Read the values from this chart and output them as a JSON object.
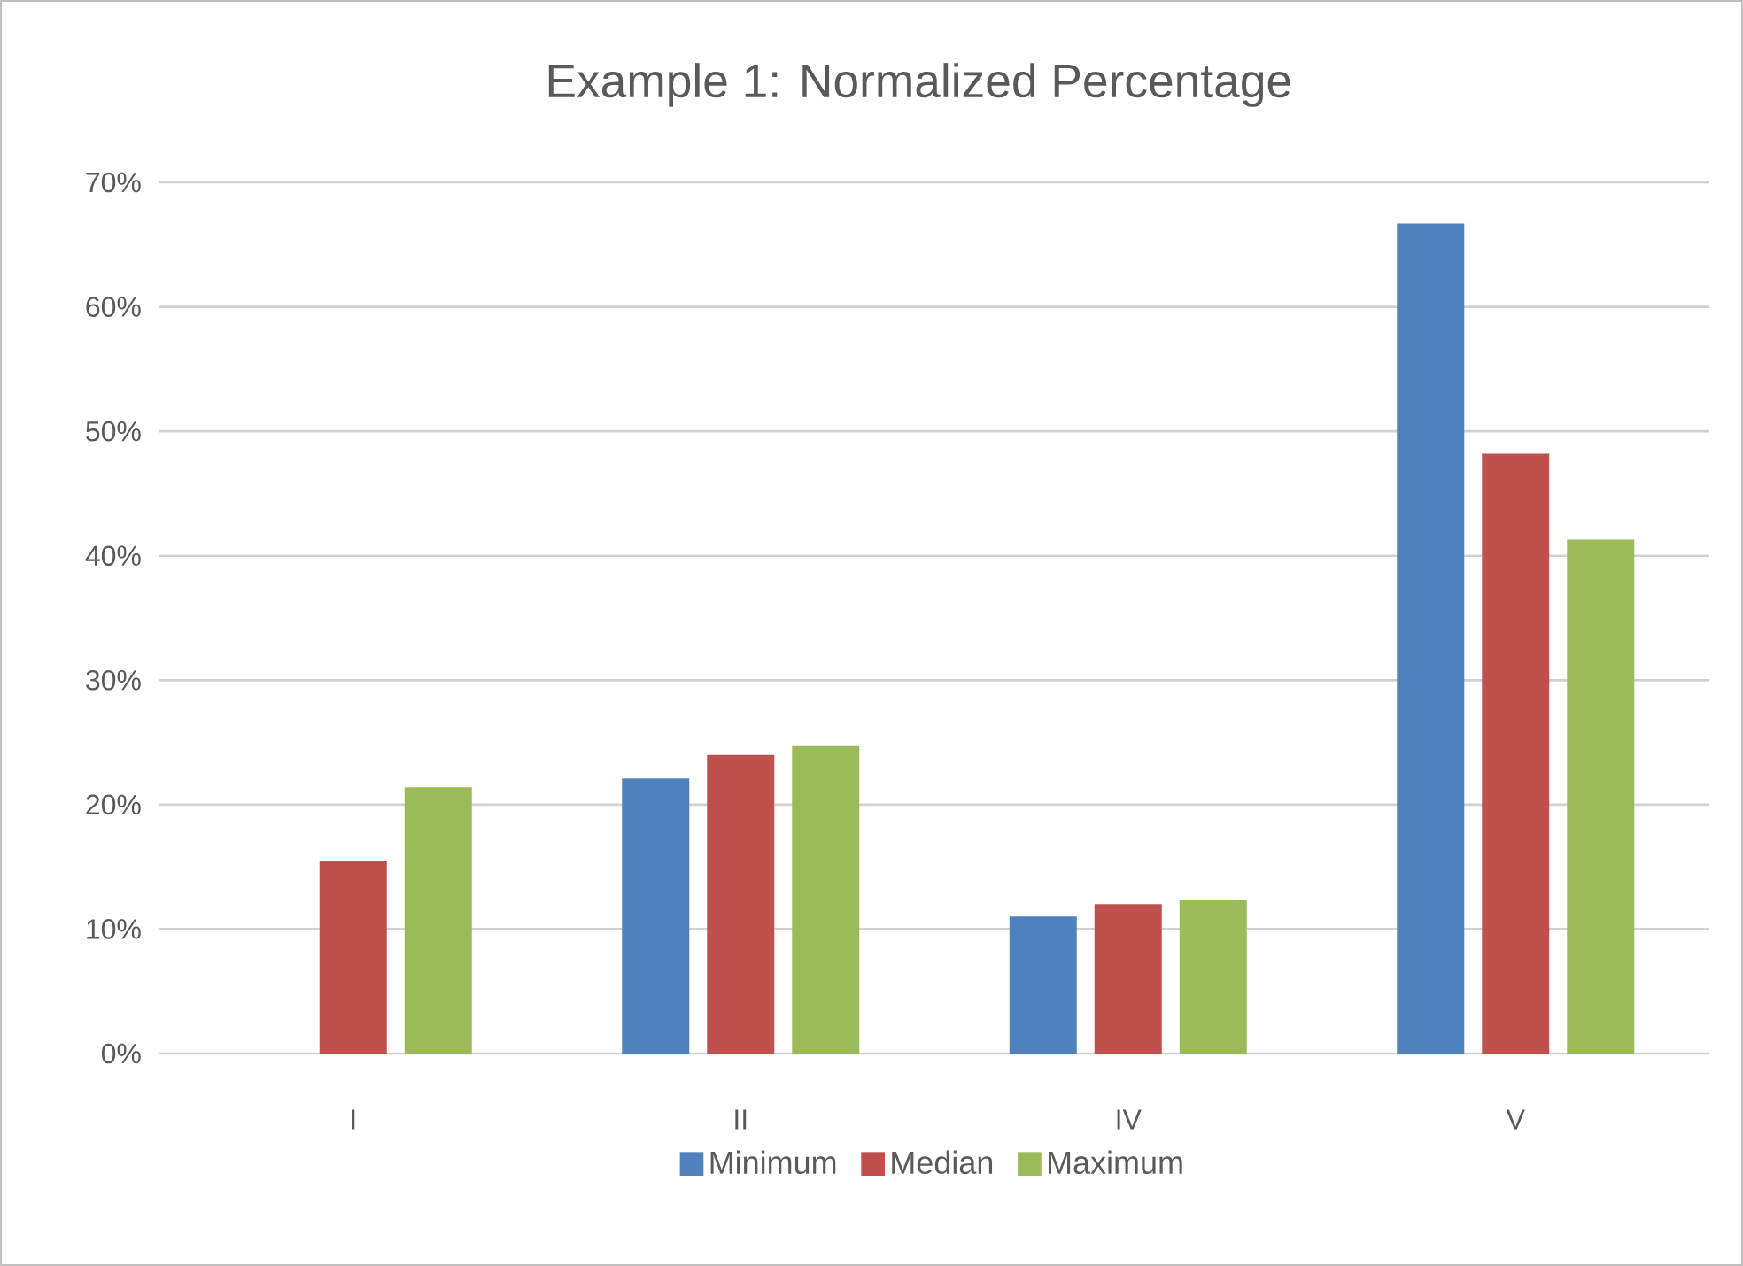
{
  "chart_data": {
    "type": "bar",
    "title": "Example 1: Normalized Percentage",
    "categories": [
      "I",
      "II",
      "IV",
      "V"
    ],
    "series": [
      {
        "name": "Minimum",
        "color": "#4f81bd",
        "values": [
          0,
          22.1,
          11.0,
          66.7
        ]
      },
      {
        "name": "Median",
        "color": "#c0504d",
        "values": [
          15.5,
          24.0,
          12.0,
          48.2
        ]
      },
      {
        "name": "Maximum",
        "color": "#9bbb59",
        "values": [
          21.4,
          24.7,
          12.3,
          41.3
        ]
      }
    ],
    "ylim": [
      0,
      70
    ],
    "yticks": [
      {
        "value": 0,
        "label": "0%"
      },
      {
        "value": 10,
        "label": "10%"
      },
      {
        "value": 20,
        "label": "20%"
      },
      {
        "value": 30,
        "label": "30%"
      },
      {
        "value": 40,
        "label": "40%"
      },
      {
        "value": 50,
        "label": "50%"
      },
      {
        "value": 60,
        "label": "60%"
      },
      {
        "value": 70,
        "label": "70%"
      }
    ],
    "grid": "y",
    "legend": "bottom"
  }
}
